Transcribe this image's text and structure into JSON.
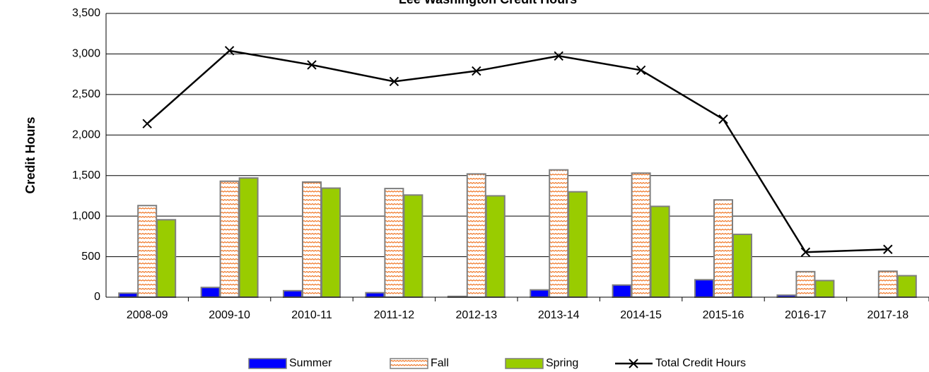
{
  "chart_data": {
    "type": "bar_line",
    "title": "Lee Washington Credit Hours",
    "y_label": "Credit Hours",
    "categories": [
      "2008-09",
      "2009-10",
      "2010-11",
      "2011-12",
      "2012-13",
      "2013-14",
      "2014-15",
      "2015-16",
      "2016-17",
      "2017-18"
    ],
    "series": [
      {
        "name": "Summer",
        "type": "bar",
        "color": "#0000ff",
        "values": [
          50,
          120,
          80,
          55,
          10,
          90,
          150,
          215,
          25,
          0
        ]
      },
      {
        "name": "Fall",
        "type": "bar",
        "color": "#f07828",
        "pattern": "zigzag",
        "values": [
          1130,
          1430,
          1420,
          1340,
          1520,
          1570,
          1530,
          1200,
          315,
          320
        ]
      },
      {
        "name": "Spring",
        "type": "bar",
        "color": "#99cc00",
        "values": [
          955,
          1470,
          1345,
          1260,
          1250,
          1300,
          1120,
          775,
          205,
          265
        ]
      },
      {
        "name": "Total Credit Hours",
        "type": "line",
        "color": "#000000",
        "values": [
          2140,
          3040,
          2865,
          2660,
          2790,
          2975,
          2800,
          2195,
          555,
          590
        ]
      }
    ],
    "ylim": [
      0,
      3500
    ],
    "yticks": [
      0,
      500,
      {
        "value": 1000,
        "label": "1,000"
      },
      {
        "value": 1500,
        "label": "1,500"
      },
      {
        "value": 2000,
        "label": "2,000"
      },
      {
        "value": 2500,
        "label": "2,500"
      },
      {
        "value": 3000,
        "label": "3,000"
      },
      {
        "value": 3500,
        "label": "3,500"
      }
    ],
    "grid": true,
    "legend": "bottom"
  }
}
